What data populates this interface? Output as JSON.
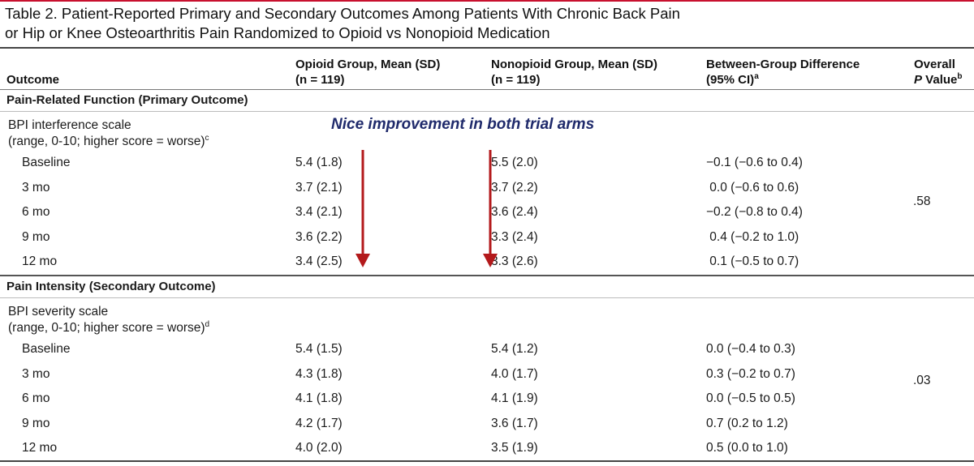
{
  "title": {
    "line1": "Table 2. Patient-Reported Primary and Secondary Outcomes Among Patients With Chronic Back Pain",
    "line2": "or Hip or Knee Osteoarthritis Pain Randomized to Opioid vs Nonopioid Medication"
  },
  "header": {
    "outcome": "Outcome",
    "opioid_line1": "Opioid Group, Mean (SD)",
    "opioid_line2": "(n = 119)",
    "nonopioid_line1": "Nonopioid Group, Mean (SD)",
    "nonopioid_line2": "(n = 119)",
    "diff_line1": "Between-Group Difference",
    "diff_line2": "(95% CI)",
    "diff_sup": "a",
    "p_line1": "Overall",
    "p_line2_italic": "P",
    "p_line2_rest": " Value",
    "p_sup": "b"
  },
  "annotation": "Nice improvement in both trial arms",
  "sections": [
    {
      "heading": "Pain-Related Function (Primary Outcome)",
      "scale_line1": "BPI interference scale",
      "scale_line2": "(range, 0-10; higher score = worse)",
      "scale_sup": "c",
      "p_value": ".58",
      "rows": [
        {
          "label": "Baseline",
          "opioid": "5.4 (1.8)",
          "nonopioid": "5.5 (2.0)",
          "diff": "−0.1 (−0.6 to 0.4)"
        },
        {
          "label": "3 mo",
          "opioid": "3.7 (2.1)",
          "nonopioid": "3.7 (2.2)",
          "diff": " 0.0 (−0.6 to 0.6)"
        },
        {
          "label": "6 mo",
          "opioid": "3.4 (2.1)",
          "nonopioid": "3.6 (2.4)",
          "diff": "−0.2 (−0.8 to 0.4)"
        },
        {
          "label": "9 mo",
          "opioid": "3.6 (2.2)",
          "nonopioid": "3.3 (2.4)",
          "diff": " 0.4 (−0.2 to 1.0)"
        },
        {
          "label": "12 mo",
          "opioid": "3.4 (2.5)",
          "nonopioid": "3.3 (2.6)",
          "diff": " 0.1 (−0.5 to 0.7)"
        }
      ]
    },
    {
      "heading": "Pain Intensity (Secondary Outcome)",
      "scale_line1": "BPI severity scale",
      "scale_line2": "(range, 0-10; higher score = worse)",
      "scale_sup": "d",
      "p_value": ".03",
      "rows": [
        {
          "label": "Baseline",
          "opioid": "5.4 (1.5)",
          "nonopioid": "5.4 (1.2)",
          "diff": "0.0 (−0.4 to 0.3)"
        },
        {
          "label": "3 mo",
          "opioid": "4.3 (1.8)",
          "nonopioid": "4.0 (1.7)",
          "diff": "0.3 (−0.2 to 0.7)"
        },
        {
          "label": "6 mo",
          "opioid": "4.1 (1.8)",
          "nonopioid": "4.1 (1.9)",
          "diff": "0.0 (−0.5 to 0.5)"
        },
        {
          "label": "9 mo",
          "opioid": "4.2 (1.7)",
          "nonopioid": "3.6 (1.7)",
          "diff": "0.7 (0.2 to 1.2)"
        },
        {
          "label": "12 mo",
          "opioid": "4.0 (2.0)",
          "nonopioid": "3.5 (1.9)",
          "diff": "0.5 (0.0 to 1.0)"
        }
      ]
    }
  ],
  "colors": {
    "arrow": "#b3191b",
    "annotation": "#1f2a6b",
    "accent_rule": "#c8102e"
  }
}
